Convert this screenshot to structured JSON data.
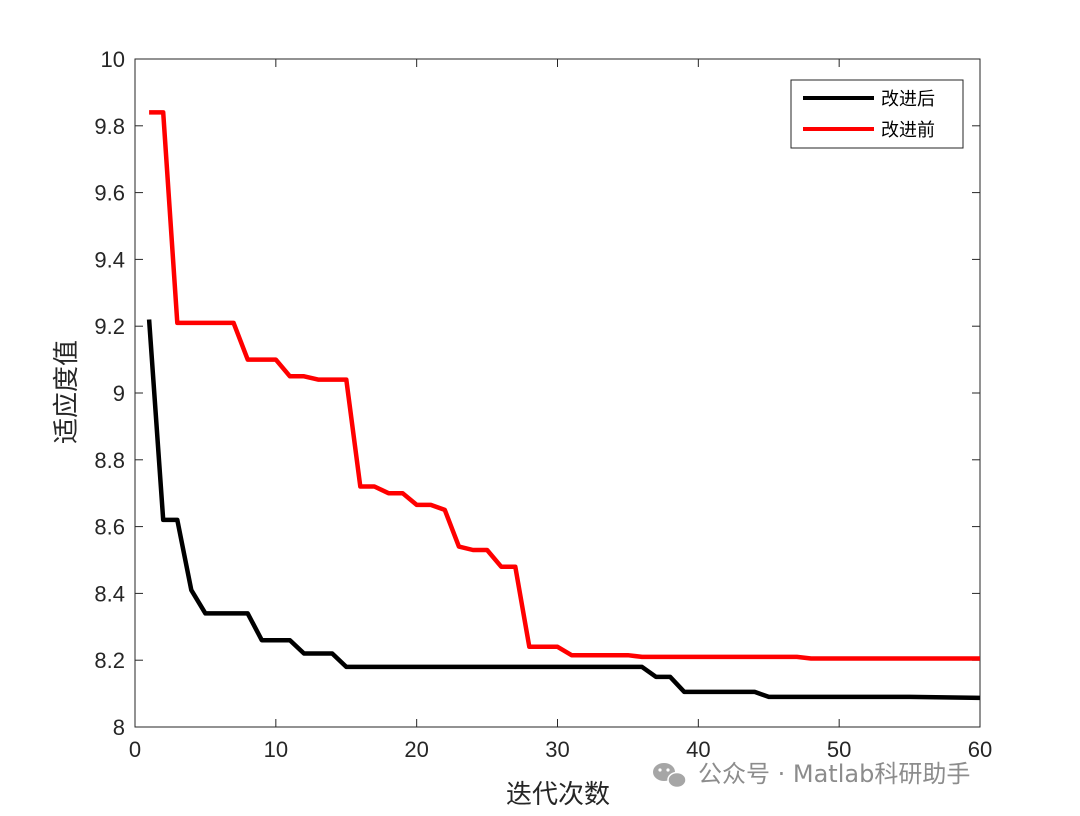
{
  "chart_data": {
    "type": "line",
    "xlabel": "迭代次数",
    "ylabel": "适应度值",
    "xlim": [
      0,
      60
    ],
    "ylim": [
      8,
      10
    ],
    "xticks": [
      0,
      10,
      20,
      30,
      40,
      50,
      60
    ],
    "yticks": [
      8,
      8.2,
      8.4,
      8.6,
      8.8,
      9,
      9.2,
      9.4,
      9.6,
      9.8,
      10
    ],
    "ytick_labels": [
      "8",
      "8.2",
      "8.4",
      "8.6",
      "8.8",
      "9",
      "9.2",
      "9.4",
      "9.6",
      "9.8",
      "10"
    ],
    "grid": false,
    "legend_position": "top-right",
    "series": [
      {
        "name": "改进后",
        "color": "#000000",
        "points": [
          [
            1,
            9.22
          ],
          [
            2,
            8.62
          ],
          [
            3,
            8.62
          ],
          [
            4,
            8.41
          ],
          [
            5,
            8.34
          ],
          [
            6,
            8.34
          ],
          [
            7,
            8.34
          ],
          [
            8,
            8.34
          ],
          [
            9,
            8.26
          ],
          [
            10,
            8.26
          ],
          [
            11,
            8.26
          ],
          [
            12,
            8.22
          ],
          [
            13,
            8.22
          ],
          [
            14,
            8.22
          ],
          [
            15,
            8.18
          ],
          [
            20,
            8.18
          ],
          [
            25,
            8.18
          ],
          [
            30,
            8.18
          ],
          [
            35,
            8.18
          ],
          [
            36,
            8.18
          ],
          [
            37,
            8.15
          ],
          [
            38,
            8.15
          ],
          [
            39,
            8.105
          ],
          [
            40,
            8.105
          ],
          [
            44,
            8.105
          ],
          [
            45,
            8.09
          ],
          [
            50,
            8.09
          ],
          [
            55,
            8.09
          ],
          [
            60,
            8.087
          ]
        ]
      },
      {
        "name": "改进前",
        "color": "#ff0000",
        "points": [
          [
            1,
            9.84
          ],
          [
            2,
            9.84
          ],
          [
            3,
            9.21
          ],
          [
            4,
            9.21
          ],
          [
            5,
            9.21
          ],
          [
            6,
            9.21
          ],
          [
            7,
            9.21
          ],
          [
            8,
            9.1
          ],
          [
            9,
            9.1
          ],
          [
            10,
            9.1
          ],
          [
            11,
            9.05
          ],
          [
            12,
            9.05
          ],
          [
            13,
            9.04
          ],
          [
            14,
            9.04
          ],
          [
            15,
            9.04
          ],
          [
            16,
            8.72
          ],
          [
            17,
            8.72
          ],
          [
            18,
            8.7
          ],
          [
            19,
            8.7
          ],
          [
            20,
            8.665
          ],
          [
            21,
            8.665
          ],
          [
            22,
            8.65
          ],
          [
            23,
            8.54
          ],
          [
            24,
            8.53
          ],
          [
            25,
            8.53
          ],
          [
            26,
            8.48
          ],
          [
            27,
            8.48
          ],
          [
            28,
            8.24
          ],
          [
            29,
            8.24
          ],
          [
            30,
            8.24
          ],
          [
            31,
            8.215
          ],
          [
            35,
            8.215
          ],
          [
            36,
            8.21
          ],
          [
            40,
            8.21
          ],
          [
            45,
            8.21
          ],
          [
            47,
            8.21
          ],
          [
            48,
            8.205
          ],
          [
            50,
            8.205
          ],
          [
            55,
            8.205
          ],
          [
            60,
            8.205
          ]
        ]
      }
    ]
  },
  "watermark": {
    "icon": "wechat-icon",
    "text": "公众号 · Matlab科研助手"
  }
}
